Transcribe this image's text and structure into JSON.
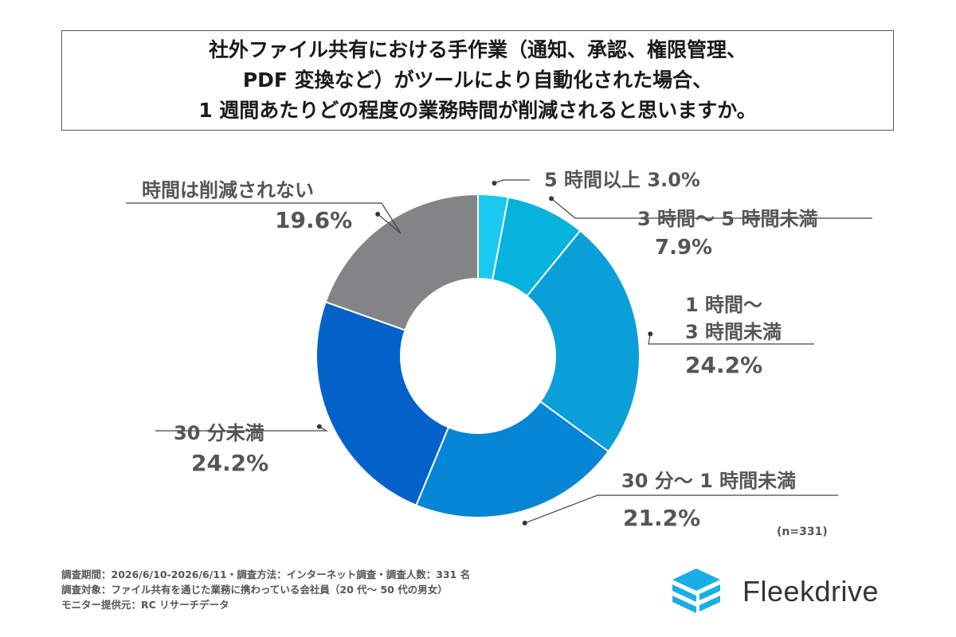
{
  "title": {
    "lines": [
      "社外ファイル共有における手作業（通知、承認、権限管理、",
      "PDF 変換など）がツールにより自動化された場合、",
      "1 週間あたりどの程度の業務時間が削減されると思いますか。"
    ]
  },
  "chart_data": {
    "type": "pie",
    "donut": true,
    "slices": [
      {
        "label_lines": [
          "5 時間以上  3.0%"
        ],
        "value_text": "",
        "value": 3.0,
        "color": "#19c9ef"
      },
      {
        "label_lines": [
          "3 時間～ 5 時間未満"
        ],
        "value_text": "7.9%",
        "value": 7.9,
        "color": "#05b3dc"
      },
      {
        "label_lines": [
          "1 時間～",
          "3 時間未満"
        ],
        "value_text": "24.2%",
        "value": 24.2,
        "color": "#0a9fd8"
      },
      {
        "label_lines": [
          "30 分～ 1 時間未満"
        ],
        "value_text": "21.2%",
        "value": 21.2,
        "color": "#0585d5"
      },
      {
        "label_lines": [
          "30 分未満"
        ],
        "value_text": "24.2%",
        "value": 24.2,
        "color": "#0362c9"
      },
      {
        "label_lines": [
          "時間は削減されない"
        ],
        "value_text": "19.6%",
        "value": 19.6,
        "color": "#848486"
      }
    ],
    "sample_size": "(n=331)"
  },
  "footnotes": [
    "調査期間：2026/6/10-2026/6/11・調査方法：インターネット調査・調査人数：331 名",
    "調査対象：ファイル共有を通じた業務に携わっている会社員（20 代～ 50 代の男女）",
    "モニター提供元：RC リサーチデータ"
  ],
  "logo": {
    "text": "Fleekdrive",
    "icon": "fleekdrive-logo-icon",
    "color": "#19aee6"
  }
}
